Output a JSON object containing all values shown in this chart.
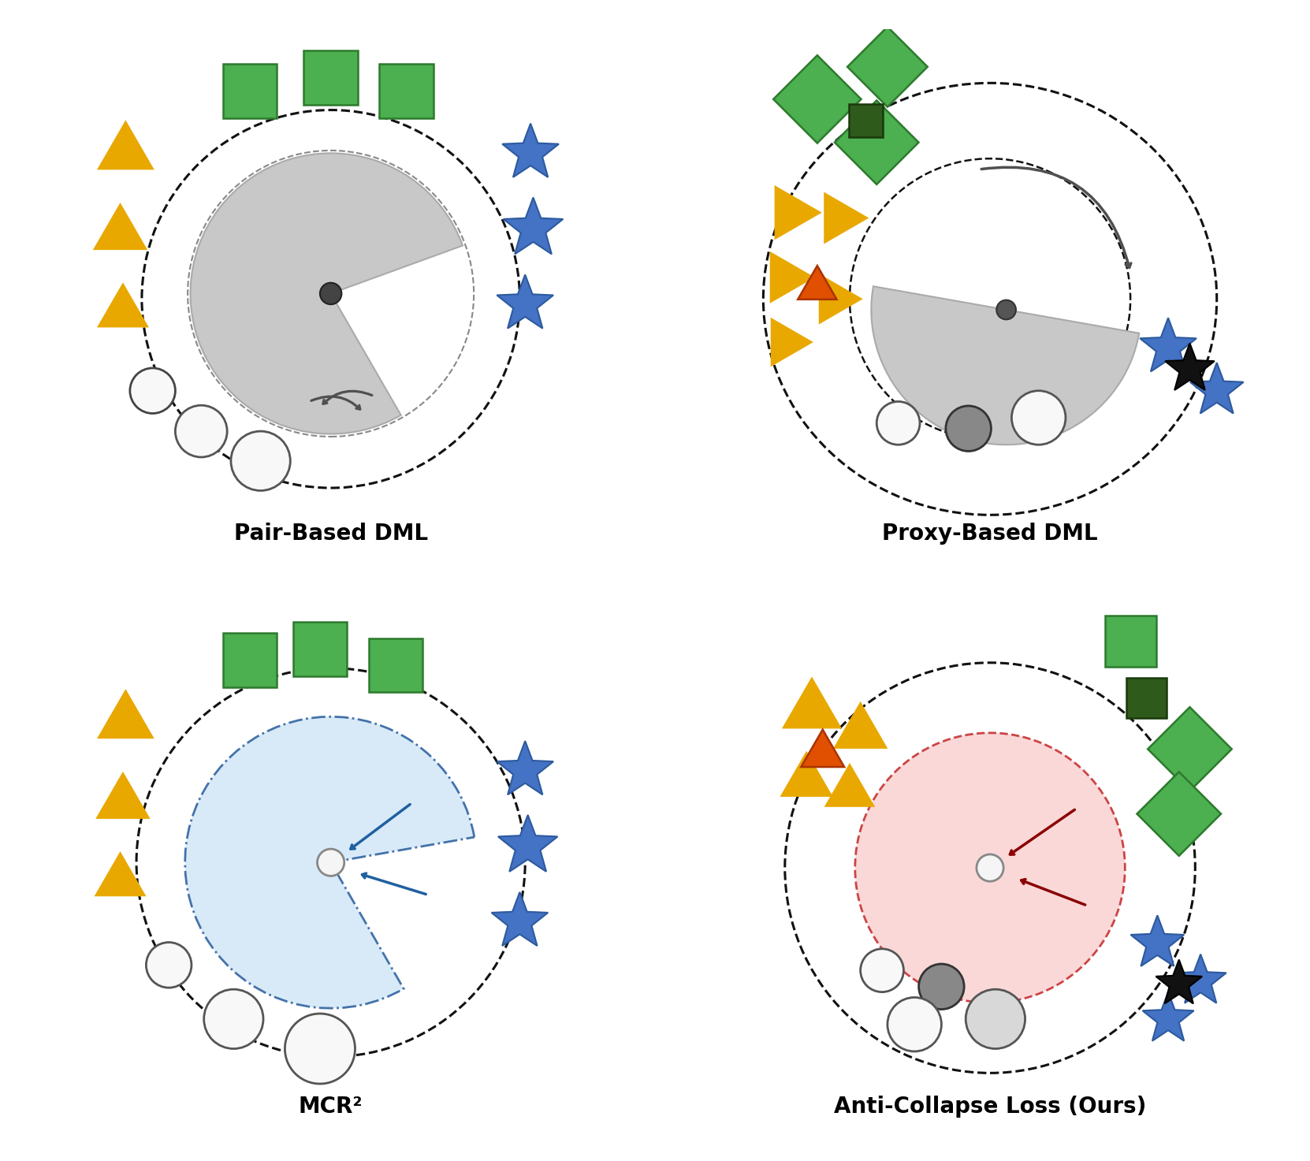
{
  "titles": [
    "Pair-Based DML",
    "Proxy-Based DML",
    "MCR²",
    "Anti-Collapse Loss (Ours)"
  ],
  "colors": {
    "green": "#4CAF50",
    "green_edge": "#2d7a2d",
    "green_dark": "#2E5A1C",
    "green_dark_edge": "#1a3a0c",
    "yellow": "#E8A800",
    "orange": "#E05000",
    "orange_edge": "#aa3300",
    "blue_star": "#4472C4",
    "blue_star_edge": "#2d5a9e",
    "black_star": "#111111",
    "wedge_gray": "#c8c8c8",
    "wedge_gray_edge": "#aaaaaa",
    "wedge_blue_fill": "#d8eaf8",
    "wedge_blue_edge": "#4472aa",
    "wedge_pink_fill": "#fad8d8",
    "wedge_pink_edge": "#cc4444",
    "circle_white": "#f8f8f8",
    "circle_gray": "#888888",
    "circle_lgray": "#d8d8d8",
    "center_dot": "#444444",
    "arrow_gray": "#505050",
    "arrow_blue": "#2060a0",
    "arrow_red": "#8B0000",
    "dashed": "#111111"
  }
}
